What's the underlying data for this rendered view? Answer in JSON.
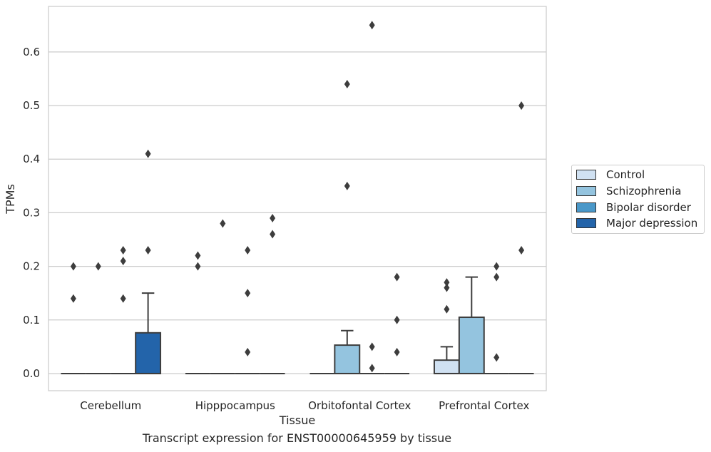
{
  "caption": "Transcript expression for ENST00000645959 by tissue",
  "colors": {
    "Control": "#d0e1f2",
    "Schizophrenia": "#94c4df",
    "Bipolar disorder": "#4a98c9",
    "Major depression": "#2364aa"
  },
  "chart_data": {
    "type": "box",
    "xlabel": "Tissue",
    "ylabel": "TPMs",
    "ylim": [
      -0.032,
      0.685
    ],
    "yticks": [
      "0.0",
      "0.1",
      "0.2",
      "0.3",
      "0.4",
      "0.5",
      "0.6"
    ],
    "grid": true,
    "legend_position": "right",
    "categories": [
      "Cerebellum",
      "Hipppocampus",
      "Orbitofontal Cortex",
      "Prefrontal Cortex"
    ],
    "series": [
      {
        "name": "Control",
        "boxes": [
          {
            "q1": 0,
            "median": 0,
            "q3": 0,
            "whisker_low": 0,
            "whisker_high": 0,
            "outliers": [
              0.14,
              0.2
            ]
          },
          {
            "q1": 0,
            "median": 0,
            "q3": 0,
            "whisker_low": 0,
            "whisker_high": 0,
            "outliers": [
              0.2,
              0.22
            ]
          },
          {
            "q1": 0,
            "median": 0,
            "q3": 0,
            "whisker_low": 0,
            "whisker_high": 0,
            "outliers": []
          },
          {
            "q1": 0,
            "median": 0,
            "q3": 0.025,
            "whisker_low": 0,
            "whisker_high": 0.05,
            "outliers": [
              0.12,
              0.16,
              0.17
            ]
          }
        ]
      },
      {
        "name": "Schizophrenia",
        "boxes": [
          {
            "q1": 0,
            "median": 0,
            "q3": 0,
            "whisker_low": 0,
            "whisker_high": 0,
            "outliers": [
              0.2
            ]
          },
          {
            "q1": 0,
            "median": 0,
            "q3": 0,
            "whisker_low": 0,
            "whisker_high": 0,
            "outliers": [
              0.28
            ]
          },
          {
            "q1": 0,
            "median": 0,
            "q3": 0.053,
            "whisker_low": 0,
            "whisker_high": 0.08,
            "outliers": [
              0.35,
              0.54
            ]
          },
          {
            "q1": 0,
            "median": 0,
            "q3": 0.105,
            "whisker_low": 0,
            "whisker_high": 0.18,
            "outliers": []
          }
        ]
      },
      {
        "name": "Bipolar disorder",
        "boxes": [
          {
            "q1": 0,
            "median": 0,
            "q3": 0,
            "whisker_low": 0,
            "whisker_high": 0,
            "outliers": [
              0.14,
              0.21,
              0.23
            ]
          },
          {
            "q1": 0,
            "median": 0,
            "q3": 0,
            "whisker_low": 0,
            "whisker_high": 0,
            "outliers": [
              0.04,
              0.15,
              0.23
            ]
          },
          {
            "q1": 0,
            "median": 0,
            "q3": 0,
            "whisker_low": 0,
            "whisker_high": 0,
            "outliers": [
              0.01,
              0.05,
              0.65
            ]
          },
          {
            "q1": 0,
            "median": 0,
            "q3": 0,
            "whisker_low": 0,
            "whisker_high": 0,
            "outliers": [
              0.03,
              0.18,
              0.2
            ]
          }
        ]
      },
      {
        "name": "Major depression",
        "boxes": [
          {
            "q1": 0,
            "median": 0,
            "q3": 0.076,
            "whisker_low": 0,
            "whisker_high": 0.15,
            "outliers": [
              0.23,
              0.41
            ]
          },
          {
            "q1": 0,
            "median": 0,
            "q3": 0,
            "whisker_low": 0,
            "whisker_high": 0,
            "outliers": [
              0.26,
              0.29
            ]
          },
          {
            "q1": 0,
            "median": 0,
            "q3": 0,
            "whisker_low": 0,
            "whisker_high": 0,
            "outliers": [
              0.04,
              0.1,
              0.18
            ]
          },
          {
            "q1": 0,
            "median": 0,
            "q3": 0,
            "whisker_low": 0,
            "whisker_high": 0,
            "outliers": [
              0.23,
              0.5
            ]
          }
        ]
      }
    ]
  }
}
